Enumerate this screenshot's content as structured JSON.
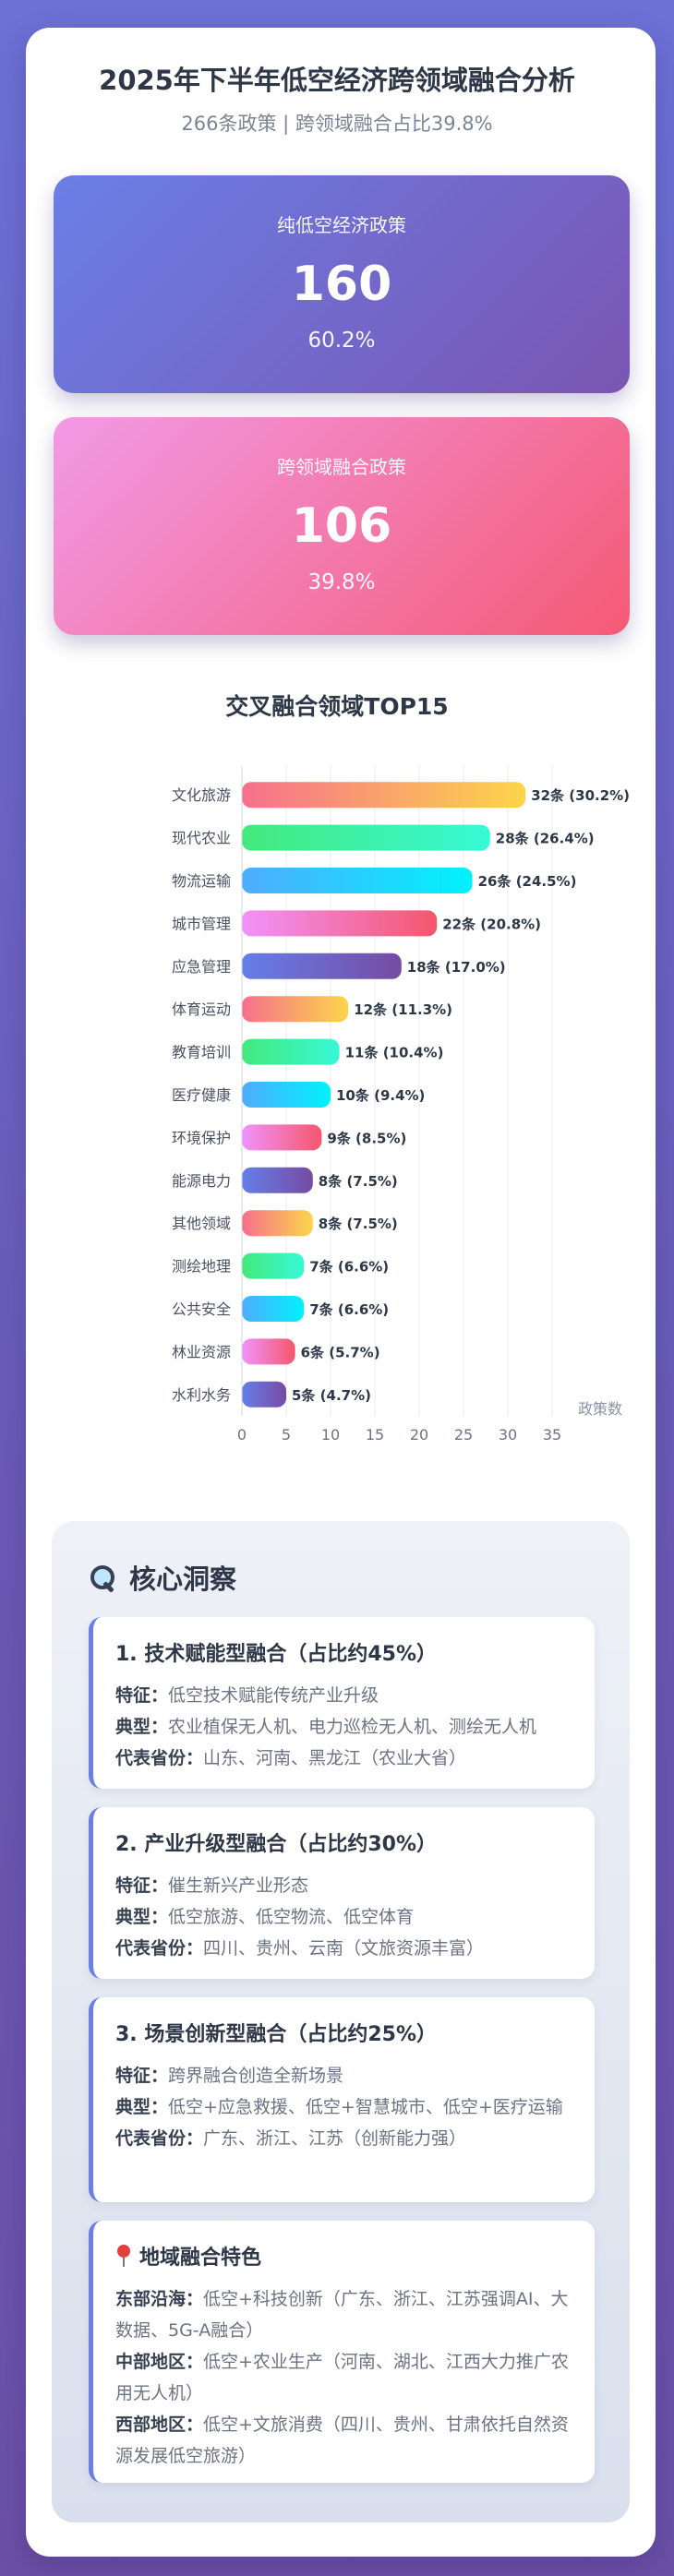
{
  "header": {
    "title": "2025年下半年低空经济跨领域融合分析",
    "subtitle": "266条政策 | 跨领域融合占比39.8%"
  },
  "stats": [
    {
      "label": "纯低空经济政策",
      "value": "160",
      "percent": "60.2%"
    },
    {
      "label": "跨领域融合政策",
      "value": "106",
      "percent": "39.8%"
    }
  ],
  "chart_section": {
    "title": "交叉融合领域TOP15"
  },
  "chart_data": {
    "type": "bar",
    "orientation": "horizontal",
    "categories": [
      "文化旅游",
      "现代农业",
      "物流运输",
      "城市管理",
      "应急管理",
      "体育运动",
      "教育培训",
      "医疗健康",
      "环境保护",
      "能源电力",
      "其他领域",
      "测绘地理",
      "公共安全",
      "林业资源",
      "水利水务"
    ],
    "values": [
      32,
      28,
      26,
      22,
      18,
      12,
      11,
      10,
      9,
      8,
      8,
      7,
      7,
      6,
      5
    ],
    "data_labels": [
      "32条 (30.2%)",
      "28条 (26.4%)",
      "26条 (24.5%)",
      "22条 (20.8%)",
      "18条 (17.0%)",
      "12条 (11.3%)",
      "11条 (10.4%)",
      "10条 (9.4%)",
      "9条 (8.5%)",
      "8条 (7.5%)",
      "8条 (7.5%)",
      "7条 (6.6%)",
      "7条 (6.6%)",
      "6条 (5.7%)",
      "5条 (4.7%)"
    ],
    "xlabel": "政策数",
    "xlim": [
      0,
      35
    ],
    "xticks": [
      "0",
      "5",
      "10",
      "15",
      "20",
      "25",
      "30",
      "35"
    ],
    "grid": true,
    "colors": [
      [
        "#f6708d",
        "#fcd64a"
      ],
      [
        "#43e97b",
        "#38f9d7"
      ],
      [
        "#4facfe",
        "#00f2fe"
      ],
      [
        "#f093fb",
        "#f5576c"
      ],
      [
        "#667eea",
        "#764ba2"
      ]
    ]
  },
  "insights": {
    "heading": "核心洞察",
    "icon": "magnifier-icon",
    "blocks": [
      {
        "title": "1. 技术赋能型融合（占比约45%）",
        "lines": [
          {
            "k": "特征：",
            "v": "低空技术赋能传统产业升级"
          },
          {
            "k": "典型：",
            "v": "农业植保无人机、电力巡检无人机、测绘无人机"
          },
          {
            "k": "代表省份：",
            "v": "山东、河南、黑龙江（农业大省）"
          }
        ]
      },
      {
        "title": "2. 产业升级型融合（占比约30%）",
        "lines": [
          {
            "k": "特征：",
            "v": "催生新兴产业形态"
          },
          {
            "k": "典型：",
            "v": "低空旅游、低空物流、低空体育"
          },
          {
            "k": "代表省份：",
            "v": "四川、贵州、云南（文旅资源丰富）"
          }
        ]
      },
      {
        "title": "3. 场景创新型融合（占比约25%）",
        "lines": [
          {
            "k": "特征：",
            "v": "跨界融合创造全新场景"
          },
          {
            "k": "典型：",
            "v": "低空+应急救援、低空+智慧城市、低空+医疗运输"
          },
          {
            "k": "代表省份：",
            "v": "广东、浙江、江苏（创新能力强）"
          }
        ]
      },
      {
        "title": "地域融合特色",
        "icon": "pin-icon",
        "lines": [
          {
            "k": "东部沿海：",
            "v": "低空+科技创新（广东、浙江、江苏强调AI、大数据、5G-A融合）"
          },
          {
            "k": "中部地区：",
            "v": "低空+农业生产（河南、湖北、江西大力推广农用无人机）"
          },
          {
            "k": "西部地区：",
            "v": "低空+文旅消费（四川、贵州、甘肃依托自然资源发展低空旅游）"
          }
        ]
      }
    ]
  }
}
